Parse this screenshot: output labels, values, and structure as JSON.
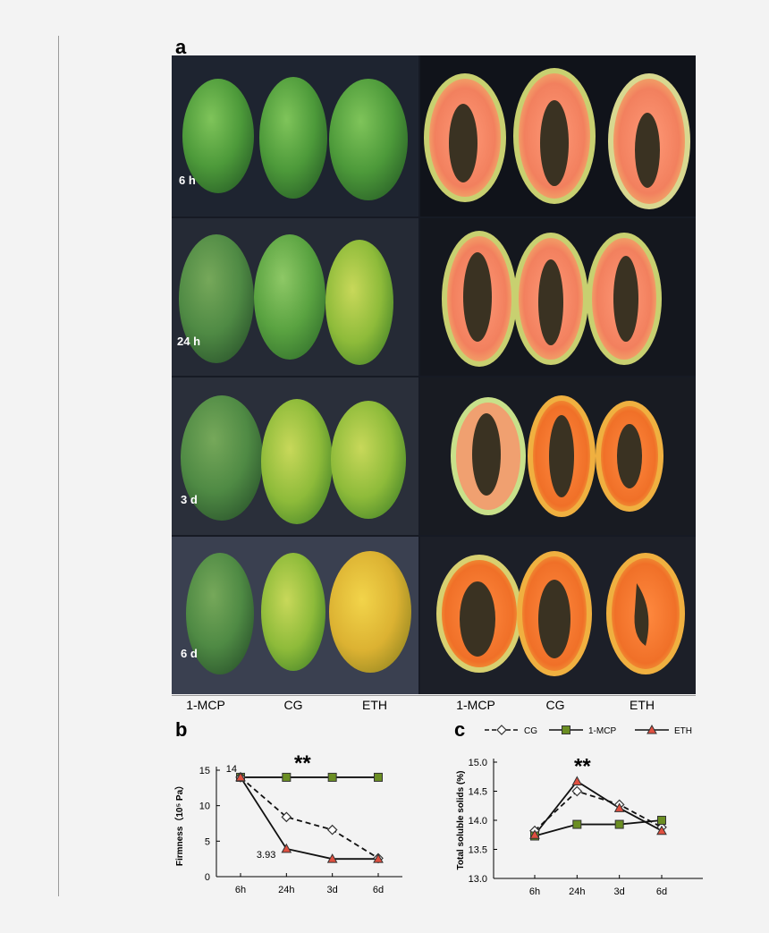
{
  "figure": {
    "panel_a": "a",
    "panel_b": "b",
    "panel_c": "c",
    "rows": [
      "6 h",
      "24 h",
      "3 d",
      "6 d"
    ],
    "whole_fruit_columns": [
      "1-MCP",
      "CG",
      "ETH"
    ],
    "cut_fruit_columns": [
      "1-MCP",
      "CG",
      "ETH"
    ]
  },
  "colors": {
    "mcp": "#6b8e23",
    "eth": "#e05040",
    "cg": "#ffffff",
    "photo_bg": "#161a24"
  },
  "chart_data": [
    {
      "type": "line",
      "id": "firmness",
      "title": "",
      "xlabel": "",
      "ylabel": "Firmness（10⁵ Pa）",
      "categories": [
        "6h",
        "24h",
        "3d",
        "6d"
      ],
      "ylim": [
        0,
        15
      ],
      "yticks": [
        0,
        5,
        10,
        15
      ],
      "series": [
        {
          "name": "1-MCP",
          "values": [
            14,
            14,
            14,
            14
          ],
          "marker": "square",
          "line": "solid"
        },
        {
          "name": "CG",
          "values": [
            14,
            8.4,
            6.6,
            2.6
          ],
          "marker": "diamond",
          "line": "dashed"
        },
        {
          "name": "ETH",
          "values": [
            14,
            3.93,
            2.5,
            2.5
          ],
          "marker": "triangle",
          "line": "solid"
        }
      ],
      "annotations": [
        {
          "text": "14",
          "x": "6h",
          "y": 14
        },
        {
          "text": "3.93",
          "x": "24h",
          "y": 3.93
        },
        {
          "text": "**",
          "x": "24h",
          "y": 14
        }
      ]
    },
    {
      "type": "line",
      "id": "tss",
      "title": "",
      "xlabel": "",
      "ylabel": "Total soluble solids (%)",
      "categories": [
        "6h",
        "24h",
        "3d",
        "6d"
      ],
      "ylim": [
        13.0,
        15.0
      ],
      "yticks": [
        "13.0",
        "13.5",
        "14.0",
        "14.5",
        "15.0"
      ],
      "legend": [
        {
          "name": "CG",
          "marker": "diamond",
          "line": "dashed"
        },
        {
          "name": "1-MCP",
          "marker": "square",
          "line": "solid"
        },
        {
          "name": "ETH",
          "marker": "triangle",
          "line": "solid"
        }
      ],
      "series": [
        {
          "name": "CG",
          "values": [
            13.82,
            14.5,
            14.27,
            13.88
          ],
          "marker": "diamond",
          "line": "dashed"
        },
        {
          "name": "1-MCP",
          "values": [
            13.73,
            13.93,
            13.93,
            14.0
          ],
          "marker": "square",
          "line": "solid"
        },
        {
          "name": "ETH",
          "values": [
            13.75,
            14.67,
            14.21,
            13.82
          ],
          "marker": "triangle",
          "line": "solid"
        }
      ],
      "annotations": [
        {
          "text": "**",
          "x": "24h",
          "y": 14.75
        }
      ]
    }
  ]
}
